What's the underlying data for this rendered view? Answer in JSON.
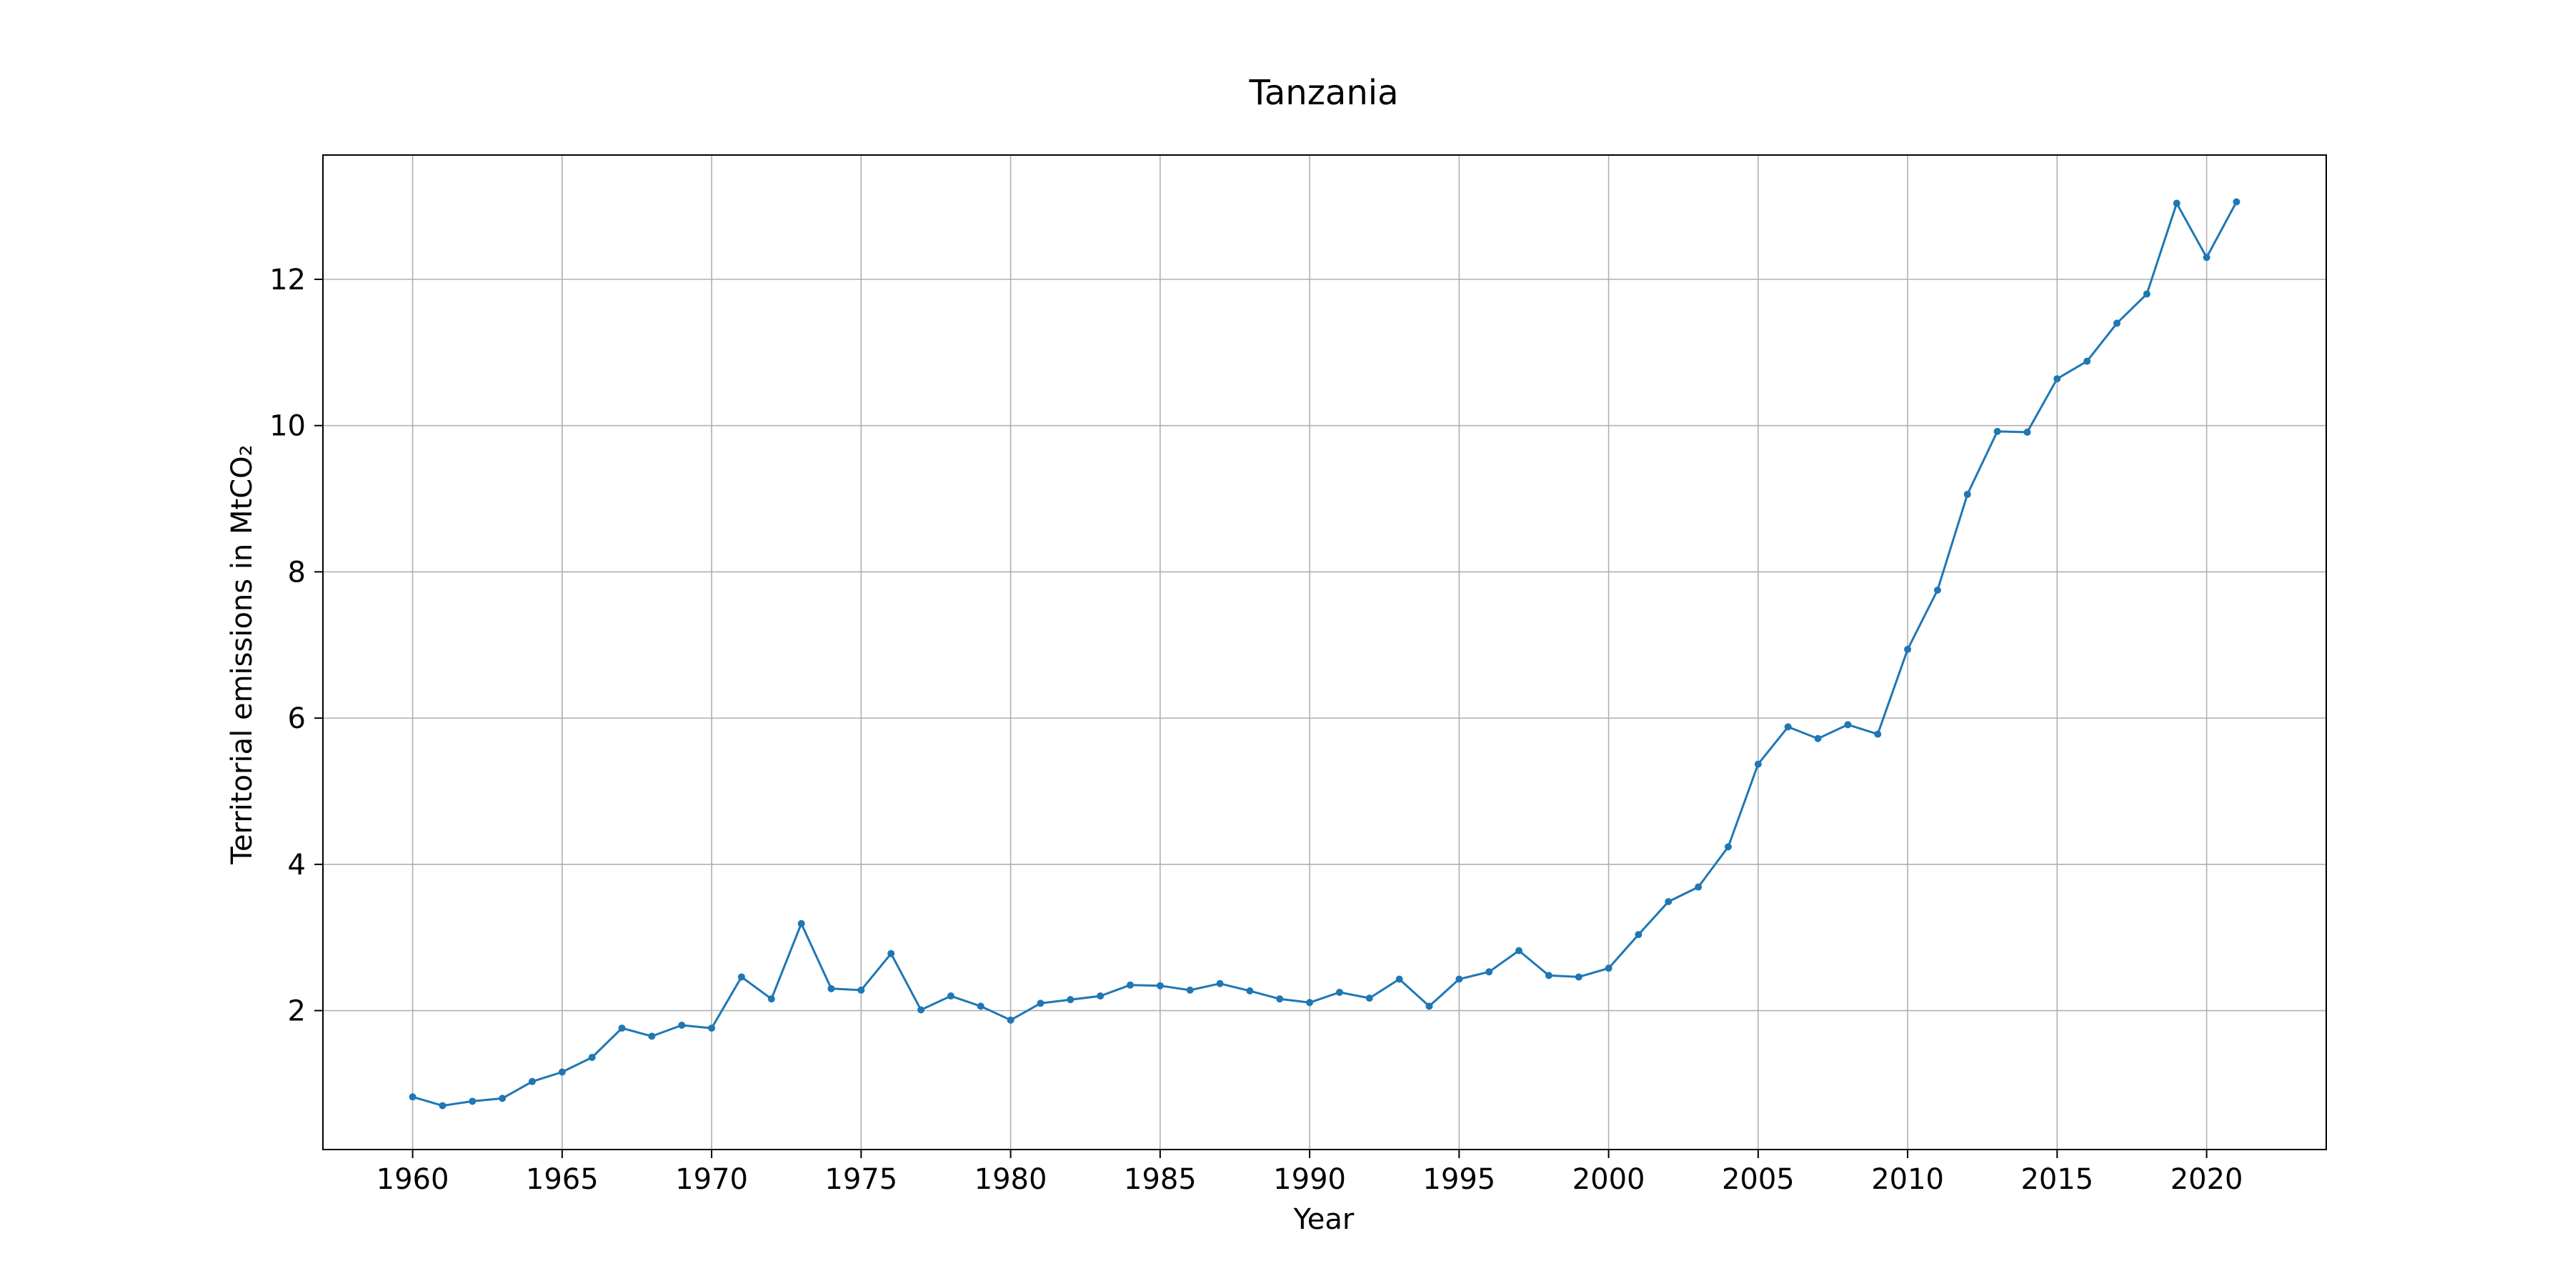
{
  "chart_data": {
    "type": "line",
    "title": "Tanzania",
    "xlabel": "Year",
    "ylabel": "Territorial emissions in MtCO₂",
    "xlim": [
      1957,
      2024
    ],
    "ylim": [
      0.1,
      13.7
    ],
    "xticks": [
      1960,
      1965,
      1970,
      1975,
      1980,
      1985,
      1990,
      1995,
      2000,
      2005,
      2010,
      2015,
      2020
    ],
    "yticks": [
      2,
      4,
      6,
      8,
      10,
      12
    ],
    "grid": true,
    "legend": "none",
    "colors": {
      "series": "#1f77b4",
      "grid": "#b0b0b0",
      "frame": "#000000"
    },
    "series": [
      {
        "x": [
          1960,
          1961,
          1962,
          1963,
          1964,
          1965,
          1966,
          1967,
          1968,
          1969,
          1970,
          1971,
          1972,
          1973,
          1974,
          1975,
          1976,
          1977,
          1978,
          1979,
          1980,
          1981,
          1982,
          1983,
          1984,
          1985,
          1986,
          1987,
          1988,
          1989,
          1990,
          1991,
          1992,
          1993,
          1994,
          1995,
          1996,
          1997,
          1998,
          1999,
          2000,
          2001,
          2002,
          2003,
          2004,
          2005,
          2006,
          2007,
          2008,
          2009,
          2010,
          2011,
          2012,
          2013,
          2014,
          2015,
          2016,
          2017,
          2018,
          2019,
          2020,
          2021
        ],
        "values": [
          0.82,
          0.7,
          0.76,
          0.8,
          1.03,
          1.16,
          1.36,
          1.76,
          1.65,
          1.8,
          1.76,
          2.46,
          2.16,
          3.19,
          2.3,
          2.28,
          2.78,
          2.01,
          2.2,
          2.06,
          1.87,
          2.1,
          2.15,
          2.2,
          2.35,
          2.34,
          2.28,
          2.37,
          2.27,
          2.16,
          2.11,
          2.25,
          2.17,
          2.43,
          2.06,
          2.43,
          2.53,
          2.82,
          2.48,
          2.46,
          2.58,
          3.04,
          3.49,
          3.69,
          4.24,
          5.37,
          5.88,
          5.72,
          5.91,
          5.78,
          6.94,
          7.75,
          9.06,
          9.92,
          9.91,
          10.64,
          10.88,
          11.4,
          11.8,
          13.04,
          12.3,
          13.06
        ]
      }
    ]
  }
}
